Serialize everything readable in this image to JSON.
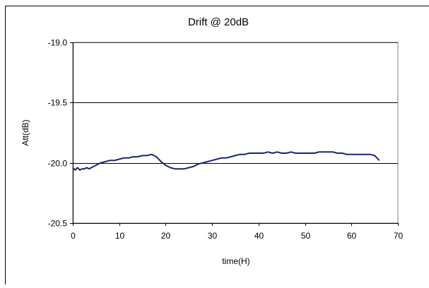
{
  "chart_data": {
    "type": "line",
    "title": "Drift @ 20dB",
    "xlabel": "time(H)",
    "ylabel": "Att(dB)",
    "xlim": [
      0,
      70
    ],
    "ylim": [
      -20.5,
      -19.0
    ],
    "y_reversed": true,
    "x_ticks": [
      0,
      10,
      20,
      30,
      40,
      50,
      60,
      70
    ],
    "y_ticks": [
      -19.0,
      -19.5,
      -20.0,
      -20.5
    ],
    "x_tick_labels": [
      "0",
      "10",
      "20",
      "30",
      "40",
      "50",
      "60",
      "70"
    ],
    "y_tick_labels": [
      "-19.0",
      "-19.5",
      "-20.0",
      "-20.5"
    ],
    "grid": "horizontal",
    "line_color": "#1a237e",
    "series": [
      {
        "x": [
          0,
          0.5,
          1,
          1.5,
          2,
          2.5,
          3,
          3.5,
          4,
          5,
          6,
          7,
          8,
          9,
          10,
          11,
          12,
          13,
          14,
          15,
          16,
          17,
          18,
          19,
          20,
          21,
          22,
          23,
          24,
          25,
          26,
          27,
          28,
          29,
          30,
          31,
          32,
          33,
          34,
          35,
          36,
          37,
          38,
          39,
          40,
          41,
          42,
          43,
          44,
          45,
          46,
          47,
          48,
          49,
          50,
          51,
          52,
          53,
          54,
          55,
          56,
          57,
          58,
          59,
          60,
          61,
          62,
          63,
          64,
          65,
          65.5,
          66
        ],
        "y": [
          -20.04,
          -20.06,
          -20.04,
          -20.06,
          -20.05,
          -20.05,
          -20.04,
          -20.05,
          -20.04,
          -20.02,
          -20.0,
          -19.99,
          -19.98,
          -19.98,
          -19.97,
          -19.96,
          -19.96,
          -19.95,
          -19.95,
          -19.94,
          -19.94,
          -19.93,
          -19.95,
          -19.99,
          -20.02,
          -20.04,
          -20.05,
          -20.05,
          -20.05,
          -20.04,
          -20.03,
          -20.01,
          -20.0,
          -19.99,
          -19.98,
          -19.97,
          -19.96,
          -19.96,
          -19.95,
          -19.94,
          -19.93,
          -19.93,
          -19.92,
          -19.92,
          -19.92,
          -19.92,
          -19.91,
          -19.92,
          -19.91,
          -19.92,
          -19.92,
          -19.91,
          -19.92,
          -19.92,
          -19.92,
          -19.92,
          -19.92,
          -19.91,
          -19.91,
          -19.91,
          -19.91,
          -19.92,
          -19.92,
          -19.93,
          -19.93,
          -19.93,
          -19.93,
          -19.93,
          -19.93,
          -19.94,
          -19.96,
          -19.98
        ]
      }
    ]
  }
}
